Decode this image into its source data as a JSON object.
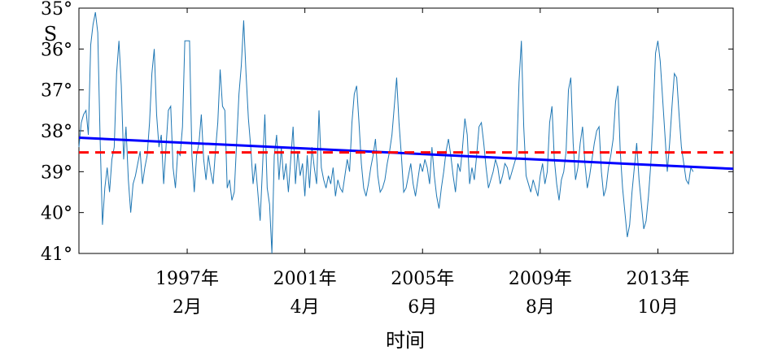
{
  "chart_data": {
    "type": "line",
    "title": "",
    "xlabel": "时间",
    "ylabel": "S",
    "y_direction": "inverted (35° at top, 41° at bottom)",
    "ylim": [
      35,
      41
    ],
    "xlim": [
      "1993-04",
      "2016-06"
    ],
    "grid": false,
    "legend": "none",
    "y_ticks": [
      "35°",
      "36°",
      "37°",
      "38°",
      "39°",
      "40°",
      "41°"
    ],
    "x_ticks": [
      {
        "year": "1997年",
        "month": "2月",
        "date": "1997-02"
      },
      {
        "year": "2001年",
        "month": "4月",
        "date": "2001-04"
      },
      {
        "year": "2005年",
        "month": "6月",
        "date": "2005-06"
      },
      {
        "year": "2009年",
        "month": "8月",
        "date": "2009-08"
      },
      {
        "year": "2013年",
        "month": "10月",
        "date": "2013-10"
      }
    ],
    "series": [
      {
        "kind": "data",
        "color": "#1f77b4",
        "x_start": "1993-04",
        "step_months": 1,
        "values": [
          38.4,
          37.8,
          37.6,
          37.5,
          38.1,
          35.9,
          35.4,
          35.1,
          35.6,
          38.2,
          40.3,
          39.4,
          38.9,
          39.5,
          38.7,
          38.4,
          36.6,
          35.8,
          36.9,
          38.7,
          37.9,
          39.2,
          40.0,
          39.3,
          39.1,
          38.8,
          38.5,
          39.3,
          38.9,
          38.6,
          37.8,
          36.6,
          36.0,
          37.6,
          38.4,
          38.1,
          39.3,
          38.4,
          37.5,
          37.4,
          38.9,
          39.4,
          38.5,
          38.6,
          37.9,
          35.8,
          35.8,
          35.8,
          38.6,
          39.5,
          38.6,
          38.3,
          37.6,
          38.7,
          39.2,
          38.6,
          39.0,
          39.3,
          38.5,
          37.8,
          36.5,
          37.4,
          37.5,
          39.4,
          39.2,
          39.7,
          39.5,
          38.3,
          37.1,
          36.4,
          35.3,
          36.6,
          37.7,
          38.4,
          39.3,
          38.8,
          39.5,
          40.2,
          38.9,
          37.6,
          39.4,
          39.8,
          41.0,
          38.6,
          38.1,
          39.2,
          38.4,
          39.2,
          38.8,
          39.5,
          38.7,
          37.9,
          39.3,
          38.5,
          39.1,
          38.8,
          39.6,
          38.6,
          39.4,
          38.4,
          38.9,
          39.3,
          37.5,
          38.9,
          39.2,
          39.4,
          39.1,
          39.3,
          38.9,
          39.6,
          39.2,
          39.4,
          39.5,
          39.1,
          38.7,
          39.0,
          37.8,
          37.1,
          36.9,
          37.8,
          38.8,
          39.4,
          39.6,
          39.3,
          38.9,
          38.6,
          38.2,
          39.1,
          39.5,
          39.4,
          39.2,
          38.8,
          38.5,
          38.1,
          37.4,
          36.7,
          37.8,
          38.6,
          39.5,
          39.4,
          39.1,
          38.8,
          39.3,
          39.6,
          39.2,
          38.8,
          39.0,
          38.7,
          38.9,
          39.3,
          38.4,
          39.1,
          39.6,
          39.9,
          39.4,
          39.0,
          38.5,
          38.2,
          38.6,
          39.1,
          39.5,
          38.8,
          39.0,
          38.4,
          37.7,
          38.1,
          39.3,
          38.9,
          39.2,
          38.6,
          37.9,
          37.8,
          38.3,
          38.9,
          39.4,
          39.2,
          39.0,
          38.7,
          38.9,
          39.3,
          39.1,
          38.8,
          38.9,
          39.2,
          39.0,
          38.8,
          38.6,
          36.8,
          35.8,
          37.9,
          39.1,
          39.3,
          39.5,
          39.2,
          39.4,
          39.6,
          39.1,
          38.8,
          39.3,
          39.0,
          37.8,
          37.4,
          38.7,
          39.3,
          39.7,
          39.2,
          39.0,
          38.5,
          37.0,
          36.7,
          38.3,
          39.2,
          38.9,
          38.3,
          37.9,
          38.8,
          39.4,
          39.1,
          38.7,
          38.3,
          38.0,
          37.9,
          39.0,
          39.6,
          39.4,
          38.9,
          38.6,
          38.2,
          37.3,
          36.9,
          38.5,
          39.4,
          40.0,
          40.6,
          40.3,
          39.5,
          38.9,
          38.3,
          39.2,
          39.8,
          40.4,
          40.2,
          39.6,
          38.8,
          37.6,
          36.1,
          35.8,
          36.3,
          37.2,
          38.1,
          39.0,
          38.3,
          37.4,
          36.6,
          36.7,
          37.6,
          38.4,
          38.8,
          39.2,
          39.3,
          38.9,
          39.0
        ]
      },
      {
        "kind": "trend",
        "color": "#0000ff",
        "points": [
          {
            "x": "1993-04",
            "y": 38.17
          },
          {
            "x": "2016-06",
            "y": 38.93
          }
        ]
      },
      {
        "kind": "mean",
        "color": "#ff0000",
        "style": "dashed",
        "value": 38.53
      }
    ]
  }
}
